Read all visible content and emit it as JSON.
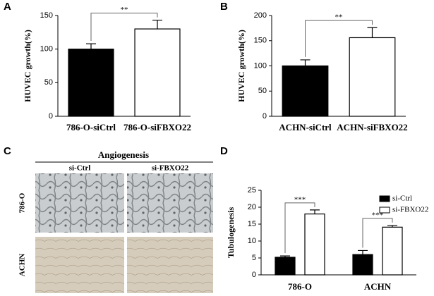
{
  "chart_data": [
    {
      "type": "bar",
      "panel_label": "A",
      "y_label": "HUVEC growth(%)",
      "categories": [
        "786-O-siCtrl",
        "786-O-siFBXO22"
      ],
      "values": [
        100,
        130
      ],
      "errors": [
        8,
        13
      ],
      "colors": [
        "#000000",
        "#ffffff"
      ],
      "ylim": [
        0,
        150
      ],
      "yticks": [
        0,
        50,
        100,
        150
      ],
      "annotations": [
        "**"
      ]
    },
    {
      "type": "bar",
      "panel_label": "B",
      "y_label": "HUVEC growth(%)",
      "categories": [
        "ACHN-siCtrl",
        "ACHN-siFBXO22"
      ],
      "values": [
        100,
        156
      ],
      "errors": [
        12,
        20
      ],
      "colors": [
        "#000000",
        "#ffffff"
      ],
      "ylim": [
        0,
        200
      ],
      "yticks": [
        0,
        50,
        100,
        150,
        200
      ],
      "annotations": [
        "**"
      ]
    },
    {
      "type": "grouped_bar",
      "panel_label": "D",
      "y_label": "Tubulogenesis",
      "categories": [
        "786-O",
        "ACHN"
      ],
      "series": [
        {
          "name": "si-Ctrl",
          "color": "#000000",
          "values": [
            5.2,
            6
          ],
          "errors": [
            0.4,
            1.2
          ]
        },
        {
          "name": "si-FBXO22",
          "color": "#ffffff",
          "values": [
            18,
            14.1
          ],
          "errors": [
            1.2,
            0.5
          ]
        }
      ],
      "ylim": [
        0,
        25
      ],
      "yticks": [
        0,
        5,
        10,
        15,
        20,
        25
      ],
      "legend": "upper right",
      "annotations": [
        "***",
        "***"
      ]
    }
  ],
  "image_panel": {
    "panel_label": "C",
    "title": "Angiogenesis",
    "columns": [
      "si-Ctrl",
      "si-FBXO22"
    ],
    "rows": [
      "786-O",
      "ACHN"
    ]
  }
}
